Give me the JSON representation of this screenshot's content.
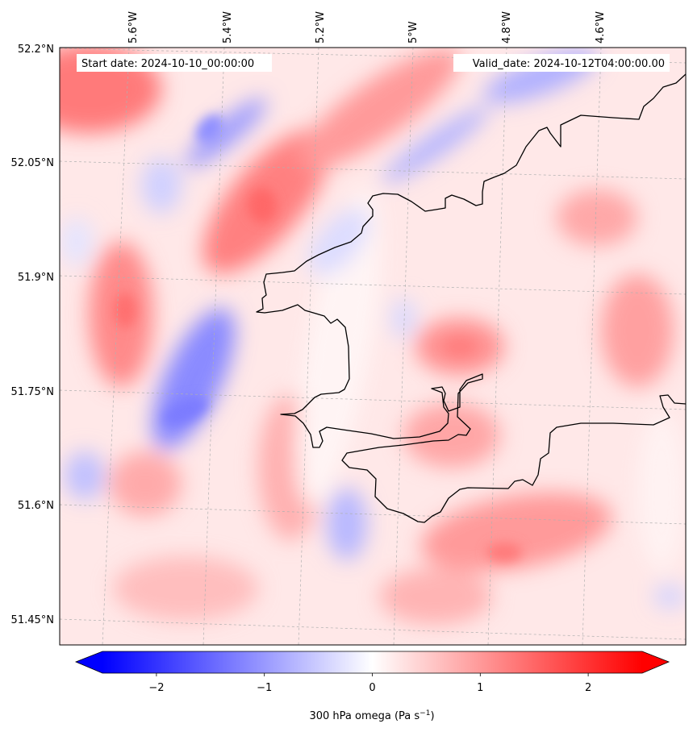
{
  "map": {
    "start_label": "Start date: 2024-10-10_00:00:00",
    "valid_label": "Valid_date: 2024-10-12T04:00:00.00",
    "lon_ticks": [
      "5.6°W",
      "5.4°W",
      "5.2°W",
      "5°W",
      "4.8°W",
      "4.6°W"
    ],
    "lat_ticks": [
      "52.2°N",
      "52.05°N",
      "51.9°N",
      "51.75°N",
      "51.6°N",
      "51.45°N"
    ],
    "lon_extent": [
      -5.7,
      -4.5
    ],
    "lat_extent": [
      51.42,
      52.2
    ],
    "field": "300 hPa omega",
    "colormap": "bwr",
    "colors": {
      "negative": "#0000ff",
      "zero": "#ffffff",
      "positive": "#ff0000",
      "coast": "#000000",
      "grid": "#b0b0b0"
    }
  },
  "colorbar": {
    "label": "300 hPa omega (Pa s",
    "label_sup": "−1",
    "label_end": ")",
    "ticks": [
      "−2",
      "−1",
      "0",
      "1",
      "2"
    ],
    "tick_values": [
      -2,
      -1,
      0,
      1,
      2
    ],
    "vmin": -2.5,
    "vmax": 2.5,
    "extend": "both"
  }
}
